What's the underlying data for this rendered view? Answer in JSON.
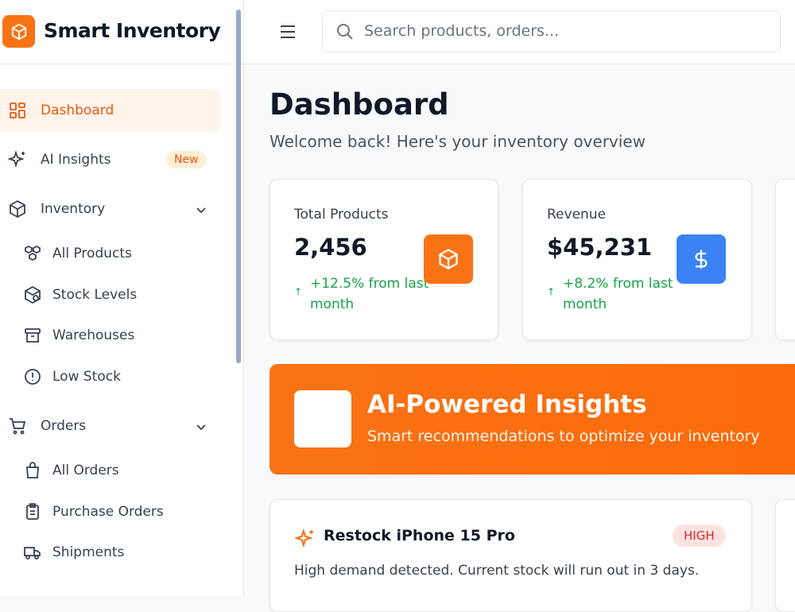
{
  "sidebar": {
    "brand": "Smart Inventory",
    "nav": [
      {
        "label": "Dashboard"
      },
      {
        "label": "AI Insights",
        "badge": "New"
      },
      {
        "label": "Inventory"
      },
      {
        "label": "All Products"
      },
      {
        "label": "Stock Levels"
      },
      {
        "label": "Warehouses"
      },
      {
        "label": "Low Stock"
      },
      {
        "label": "Orders"
      },
      {
        "label": "All Orders"
      },
      {
        "label": "Purchase Orders"
      },
      {
        "label": "Shipments"
      }
    ]
  },
  "header": {
    "search_placeholder": "Search products, orders..."
  },
  "page": {
    "title": "Dashboard",
    "subtitle": "Welcome back! Here's your inventory overview"
  },
  "stats": [
    {
      "label": "Total Products",
      "value": "2,456",
      "change": "+12.5% from last month"
    },
    {
      "label": "Revenue",
      "value": "$45,231",
      "change": "+8.2% from last month"
    }
  ],
  "banner": {
    "title": "AI-Powered Insights",
    "subtitle": "Smart recommendations to optimize your inventory"
  },
  "insights": [
    {
      "title": "Restock iPhone 15 Pro",
      "priority": "HIGH",
      "text": "High demand detected. Current stock will run out in 3 days."
    }
  ]
}
